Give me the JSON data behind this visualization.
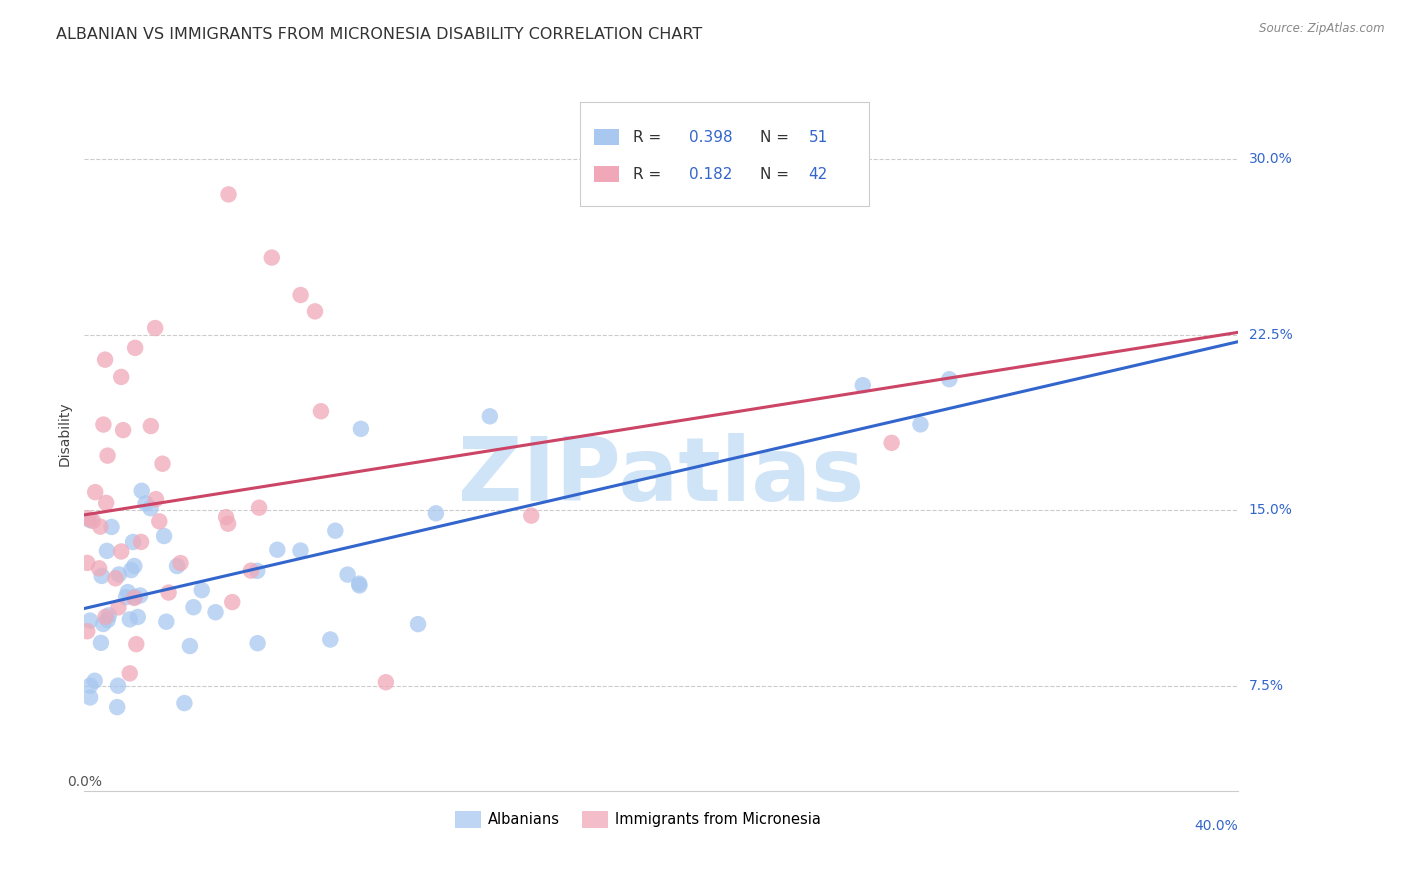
{
  "title": "ALBANIAN VS IMMIGRANTS FROM MICRONESIA DISABILITY CORRELATION CHART",
  "source": "Source: ZipAtlas.com",
  "ylabel": "Disability",
  "ytick_labels": [
    "7.5%",
    "15.0%",
    "22.5%",
    "30.0%"
  ],
  "ytick_values": [
    0.075,
    0.15,
    0.225,
    0.3
  ],
  "xlim": [
    0.0,
    0.4
  ],
  "ylim": [
    0.03,
    0.335
  ],
  "albanians_color": "#a8c8f0",
  "micronesia_color": "#f0a8b8",
  "albanian_line_color": "#3366cc",
  "micronesia_line_color": "#cc4466",
  "albanian_line_intercept": 0.108,
  "albanian_line_slope": 0.285,
  "micronesia_line_intercept": 0.148,
  "micronesia_line_slope": 0.195,
  "watermark_text": "ZIPatlas",
  "watermark_color": "#d0e4f8",
  "legend_R1": "0.398",
  "legend_N1": "51",
  "legend_R2": "0.182",
  "legend_N2": "42",
  "legend_text_color": "#333333",
  "legend_value_color": "#3366cc",
  "background_color": "#ffffff",
  "grid_color": "#cccccc",
  "title_fontsize": 11.5,
  "axis_label_fontsize": 10,
  "tick_fontsize": 10
}
